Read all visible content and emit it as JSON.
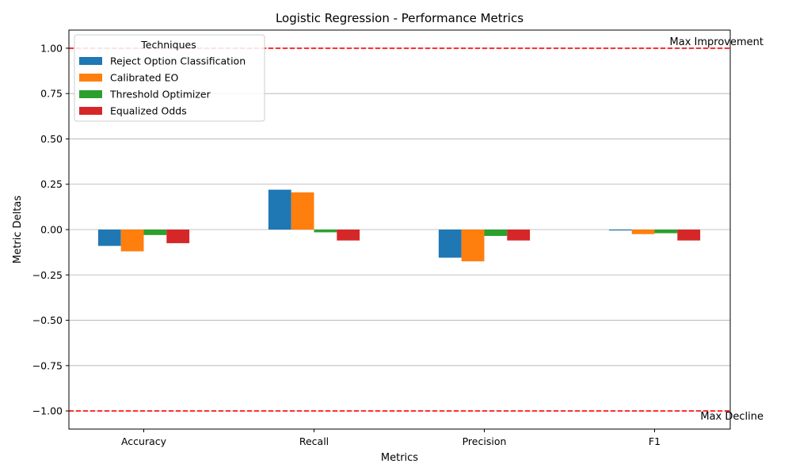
{
  "chart_data": {
    "type": "bar",
    "title": "Logistic Regression - Performance Metrics",
    "xlabel": "Metrics",
    "ylabel": "Metric Deltas",
    "categories": [
      "Accuracy",
      "Recall",
      "Precision",
      "F1"
    ],
    "series": [
      {
        "name": "Reject Option Classification",
        "color": "#1f77b4",
        "values": [
          -0.09,
          0.22,
          -0.155,
          -0.005
        ]
      },
      {
        "name": "Calibrated EO",
        "color": "#ff7f0e",
        "values": [
          -0.12,
          0.205,
          -0.175,
          -0.025
        ]
      },
      {
        "name": "Threshold Optimizer",
        "color": "#2ca02c",
        "values": [
          -0.03,
          -0.015,
          -0.035,
          -0.02
        ]
      },
      {
        "name": "Equalized Odds",
        "color": "#d62728",
        "values": [
          -0.075,
          -0.06,
          -0.06,
          -0.06
        ]
      }
    ],
    "ylim": [
      -1.1,
      1.1
    ],
    "yticks": [
      "1.00",
      "0.75",
      "0.50",
      "0.25",
      "0.00",
      "−0.25",
      "−0.50",
      "−0.75",
      "−1.00"
    ],
    "ytick_values": [
      1.0,
      0.75,
      0.5,
      0.25,
      0.0,
      -0.25,
      -0.5,
      -0.75,
      -1.0
    ],
    "grid": "horizontal",
    "legend": {
      "title": "Techniques",
      "placement": "top-left"
    },
    "reference_lines": [
      {
        "value": 1.0,
        "label": "Max Improvement",
        "color": "#ff0000",
        "style": "dashed"
      },
      {
        "value": -1.0,
        "label": "Max Decline",
        "color": "#ff0000",
        "style": "dashed"
      }
    ]
  }
}
